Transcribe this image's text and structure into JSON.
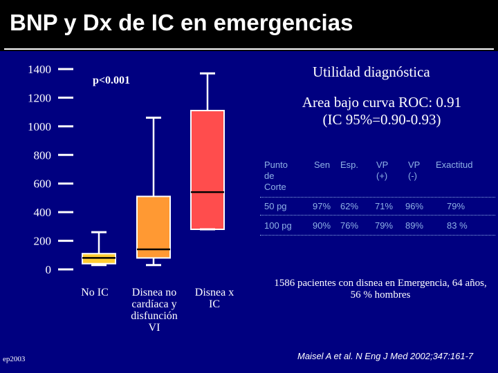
{
  "slide": {
    "title": "BNP y Dx de IC en emergencias",
    "p_value": "p<0.001",
    "utility_title": "Utilidad diagnóstica",
    "auc_text": "Area bajo curva ROC: 0.91 (IC 95%=0.90-0.93)",
    "footnote": "1586 pacientes con disnea en Emergencia, 64 años, 56 % hombres",
    "citation": "Maisel A et al. N Eng J Med 2002;347:161-7",
    "author": "ep2003"
  },
  "table": {
    "headers": [
      "Punto\nde\nCorte",
      "Sen",
      "Esp.",
      "VP\n(+)",
      "VP\n(-)",
      "Exactitud"
    ],
    "rows": [
      [
        "50 pg",
        "97%",
        "62%",
        "71%",
        "96%",
        "79%"
      ],
      [
        "100 pg",
        "90%",
        "76%",
        "79%",
        "89%",
        "83 %"
      ]
    ]
  },
  "chart_data": {
    "type": "box",
    "ylim": [
      0,
      1400
    ],
    "yticks": [
      0,
      200,
      400,
      600,
      800,
      1000,
      1200,
      1400
    ],
    "categories": [
      "No IC",
      "Disnea no\ncardíaca y\ndisfunción\nVI",
      "Disnea x\nIC"
    ],
    "boxes": [
      {
        "min": 30,
        "q1": 40,
        "median": 80,
        "q3": 110,
        "max": 260,
        "color": "#ffcc33"
      },
      {
        "min": 30,
        "q1": 80,
        "median": 140,
        "q3": 510,
        "max": 1060,
        "color": "#ff9933"
      },
      {
        "min": 280,
        "q1": 280,
        "median": 540,
        "q3": 1110,
        "max": 1370,
        "color": "#ff4d4d"
      }
    ]
  }
}
